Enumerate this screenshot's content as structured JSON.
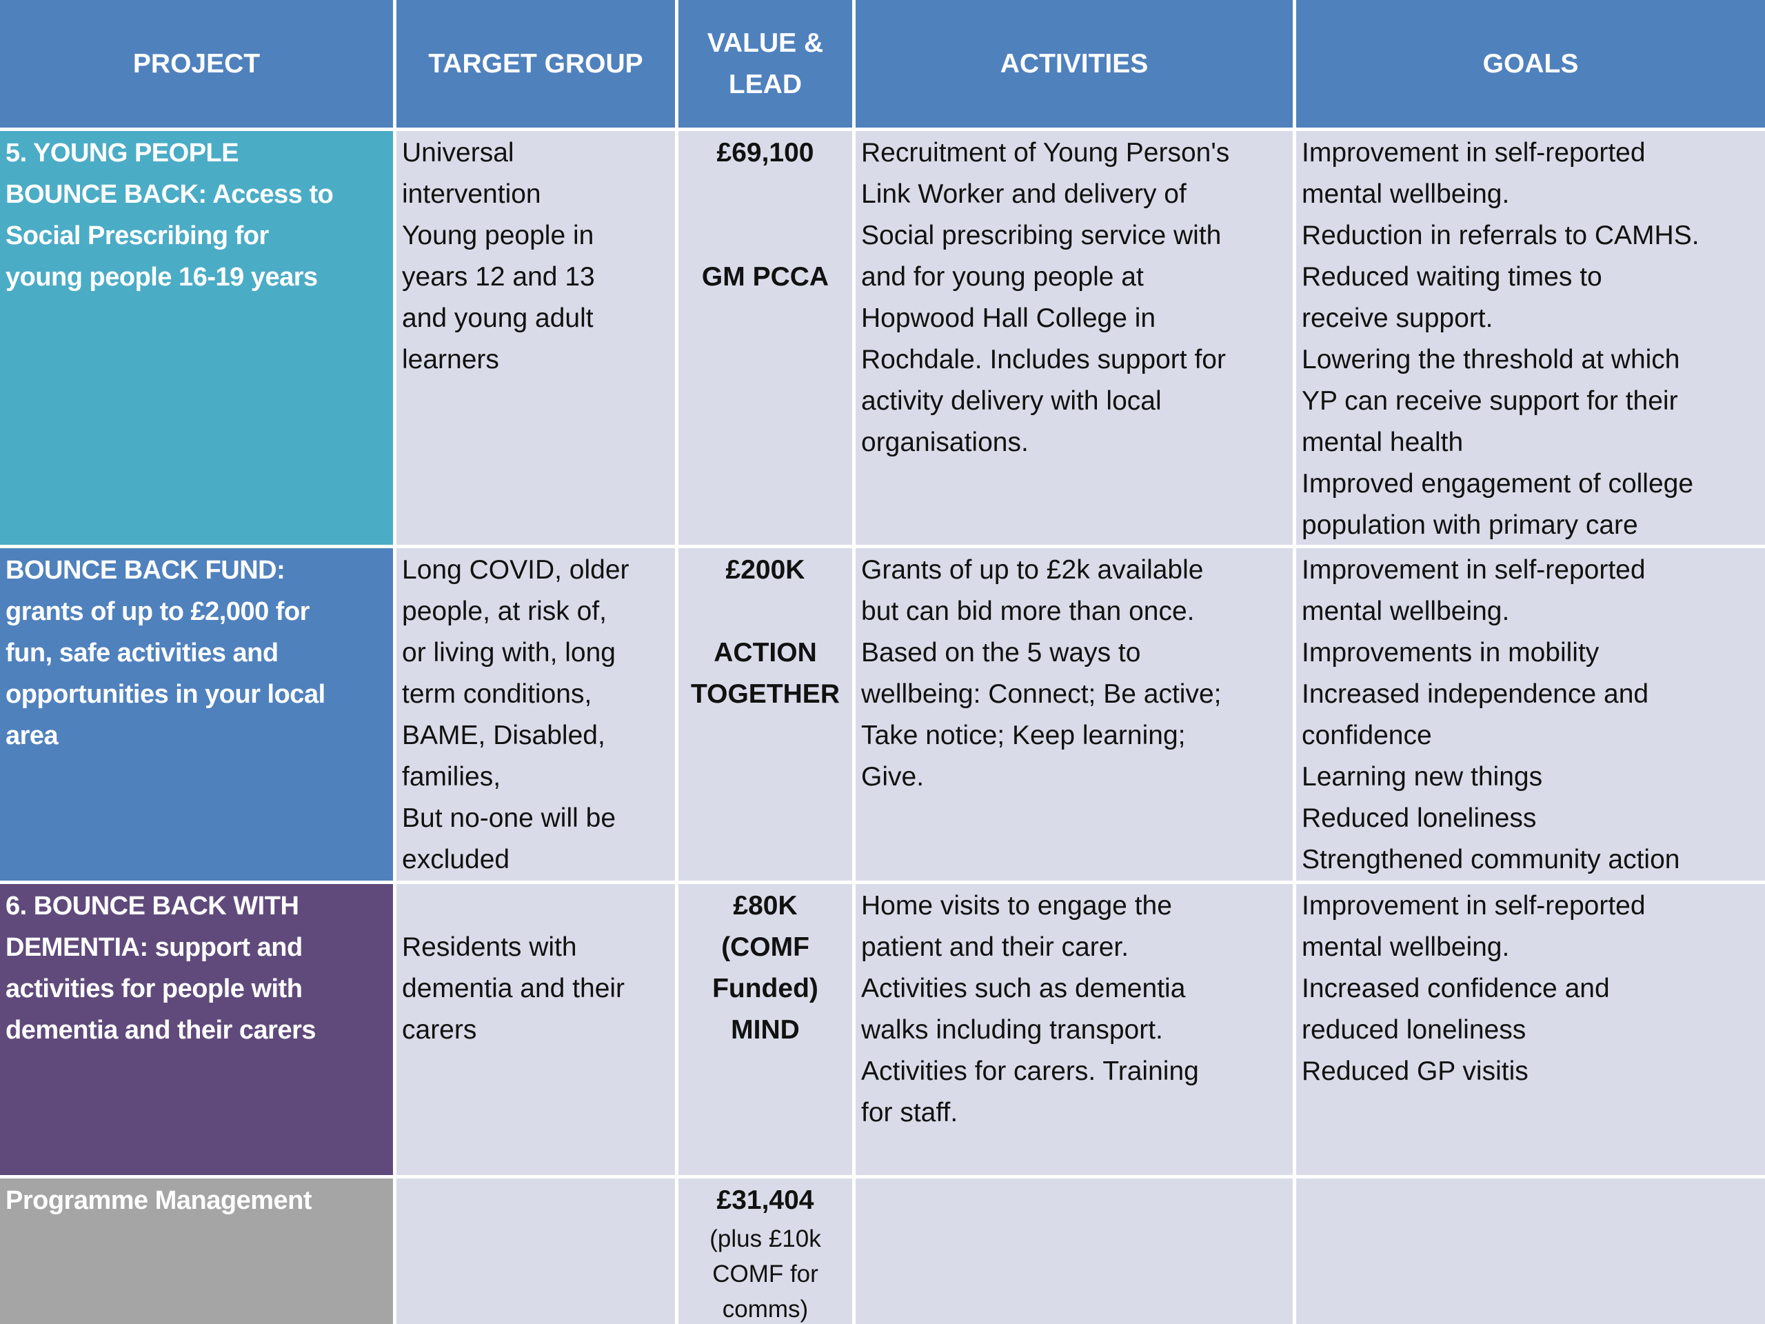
{
  "header": {
    "columns": [
      "PROJECT",
      "TARGET GROUP",
      "VALUE & LEAD",
      "ACTIVITIES",
      "GOALS"
    ]
  },
  "rows": [
    {
      "project": [
        "5. YOUNG PEOPLE",
        "BOUNCE BACK: Access to",
        "Social Prescribing for",
        "young people 16-19 years"
      ],
      "target": [
        "Universal",
        "intervention",
        "Young people in",
        "years 12 and 13",
        "and young adult",
        "learners"
      ],
      "value": [
        [
          "£69,100"
        ],
        [
          "GM PCCA"
        ]
      ],
      "activities": [
        "Recruitment of Young Person's",
        "Link Worker and delivery of",
        "Social prescribing service with",
        "and for young people at",
        "Hopwood Hall College in",
        "Rochdale. Includes support for",
        "activity delivery with local",
        "organisations."
      ],
      "goals": [
        "Improvement in self-reported",
        "mental wellbeing.",
        "Reduction in referrals to CAMHS.",
        "Reduced waiting times to",
        "receive support.",
        "Lowering the threshold at which",
        "YP can receive support for their",
        "mental health",
        "Improved engagement of college",
        "population with primary care"
      ]
    },
    {
      "project": [
        "BOUNCE BACK FUND:",
        "grants of up to £2,000 for",
        "fun, safe activities and",
        "opportunities in your local",
        "area"
      ],
      "target": [
        "Long COVID, older",
        "people, at risk of,",
        "or living with, long",
        "term conditions,",
        "BAME, Disabled,",
        "families,",
        "But no-one will be",
        "excluded"
      ],
      "value": [
        [
          "£200K"
        ],
        [
          "ACTION",
          "TOGETHER"
        ]
      ],
      "activities": [
        "Grants of up to £2k available",
        "but can bid more than once.",
        "Based on the 5 ways to",
        "wellbeing: Connect; Be active;",
        "Take notice; Keep learning;",
        "Give."
      ],
      "goals": [
        "Improvement in self-reported",
        "mental wellbeing.",
        "Improvements in mobility",
        "Increased independence and",
        "confidence",
        "Learning new things",
        "Reduced loneliness",
        "Strengthened community action"
      ]
    },
    {
      "project": [
        "6. BOUNCE BACK WITH",
        "DEMENTIA: support and",
        "activities for people with",
        "dementia and their carers"
      ],
      "target": [
        "Residents with",
        "dementia and their",
        "carers"
      ],
      "value": [
        [
          "£80K",
          "(COMF",
          "Funded)",
          "MIND"
        ]
      ],
      "activities": [
        "Home visits to engage the",
        "patient and their carer.",
        "Activities such as dementia",
        "walks including transport.",
        "Activities for carers. Training",
        "for staff."
      ],
      "goals": [
        "Improvement in self-reported",
        "mental wellbeing.",
        "Increased confidence and",
        "reduced loneliness",
        "Reduced GP visitis"
      ]
    },
    {
      "project": [
        "Programme Management"
      ],
      "target": [],
      "value": [
        [
          "£31,404"
        ],
        [
          "(plus £10k",
          "COMF for",
          "comms)"
        ]
      ],
      "activities": [],
      "goals": []
    }
  ]
}
